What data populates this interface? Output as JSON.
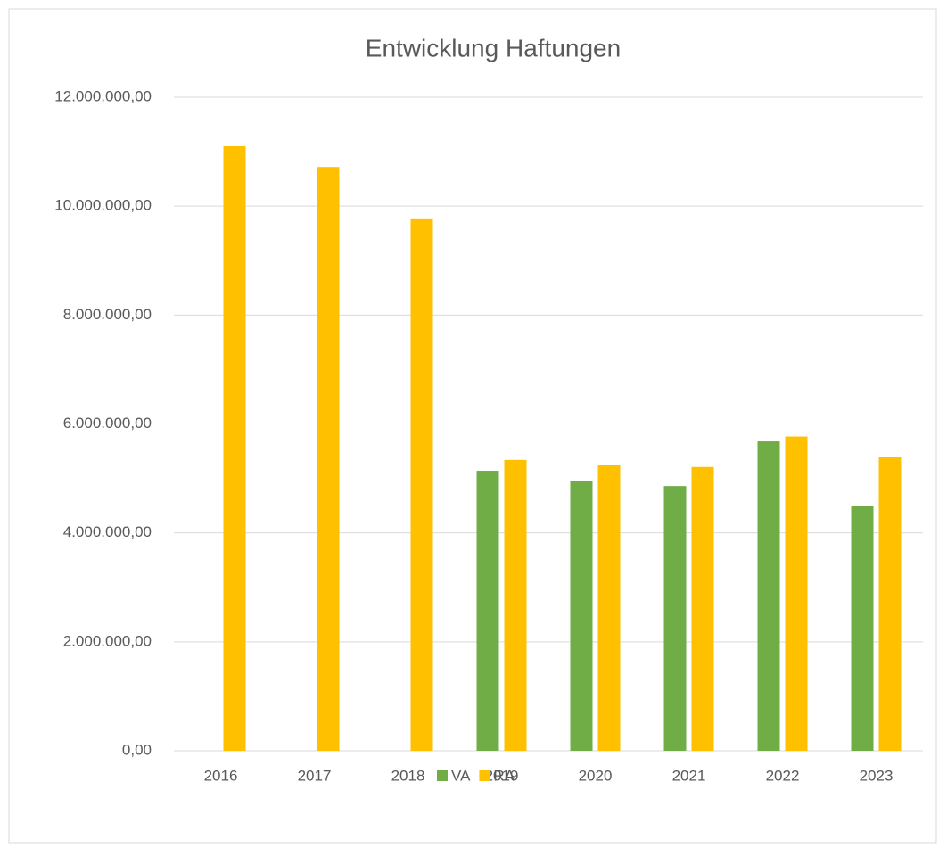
{
  "chart_data": {
    "type": "bar",
    "title": "Entwicklung Haftungen",
    "categories": [
      "2016",
      "2017",
      "2018",
      "2019",
      "2020",
      "2021",
      "2022",
      "2023"
    ],
    "series": [
      {
        "name": "VA",
        "color": "#70ad47",
        "values": [
          null,
          null,
          null,
          5140000,
          4950000,
          4860000,
          5680000,
          4490000
        ]
      },
      {
        "name": "RA",
        "color": "#ffc000",
        "values": [
          11100000,
          10720000,
          9760000,
          5340000,
          5240000,
          5210000,
          5770000,
          5390000
        ]
      }
    ],
    "ylim": [
      0,
      12000000
    ],
    "yticks": [
      {
        "value": 0,
        "label": "0,00"
      },
      {
        "value": 2000000,
        "label": "2.000.000,00"
      },
      {
        "value": 4000000,
        "label": "4.000.000,00"
      },
      {
        "value": 6000000,
        "label": "6.000.000,00"
      },
      {
        "value": 8000000,
        "label": "8.000.000,00"
      },
      {
        "value": 10000000,
        "label": "10.000.000,00"
      },
      {
        "value": 12000000,
        "label": "12.000.000,00"
      }
    ],
    "grid": true,
    "legend": "bottom"
  }
}
